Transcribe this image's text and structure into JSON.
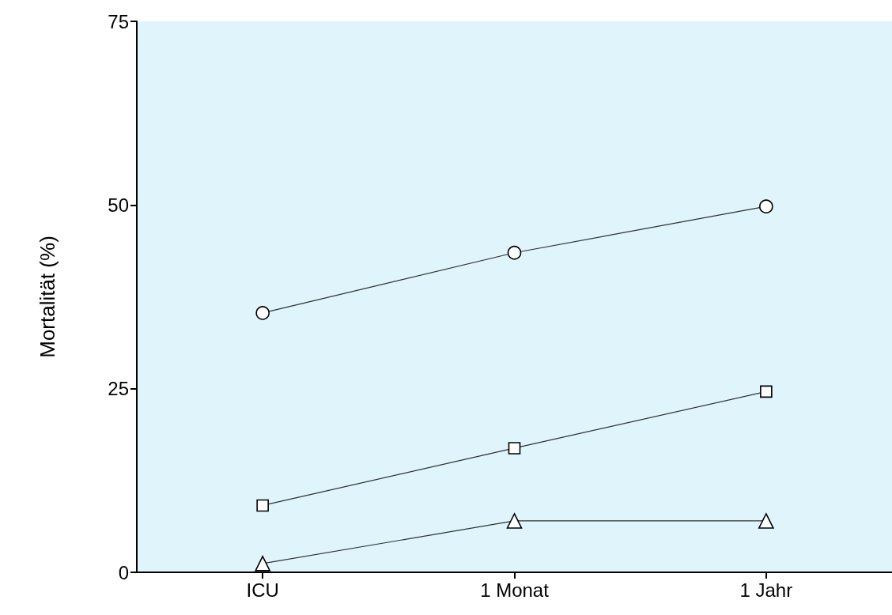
{
  "chart_data": {
    "type": "line",
    "ylabel": "Mortalität (%)",
    "categories": [
      "ICU",
      "1 Monat",
      "1 Jahr"
    ],
    "series": [
      {
        "color": "#000000",
        "marker": "circle",
        "values": [
          35.3,
          43.5,
          49.8
        ]
      },
      {
        "color": "#000000",
        "marker": "square",
        "values": [
          9.1,
          16.9,
          24.6
        ]
      },
      {
        "color": "#000000",
        "marker": "triangle",
        "values": [
          1.2,
          7.0,
          7.0
        ]
      }
    ],
    "ylim": [
      0,
      75
    ],
    "yticks": [
      0,
      25,
      50,
      75
    ],
    "line_style": "solid"
  }
}
